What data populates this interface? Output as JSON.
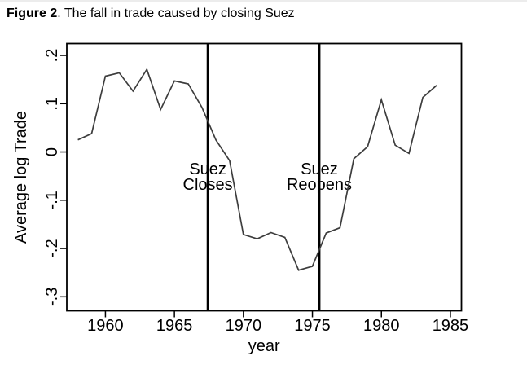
{
  "figure_title": {
    "prefix": "Figure 2",
    "rest": ". The fall in trade caused by closing Suez"
  },
  "chart_data": {
    "type": "line",
    "title": "Figure 2. The fall in trade caused by closing Suez",
    "xlabel": "year",
    "ylabel": "Average log Trade",
    "x": [
      1958,
      1959,
      1960,
      1961,
      1962,
      1963,
      1964,
      1965,
      1966,
      1967,
      1968,
      1969,
      1970,
      1971,
      1972,
      1973,
      1974,
      1975,
      1976,
      1977,
      1978,
      1979,
      1980,
      1981,
      1982,
      1983,
      1984
    ],
    "values": [
      0.025,
      0.038,
      0.157,
      0.164,
      0.126,
      0.171,
      0.088,
      0.147,
      0.141,
      0.092,
      0.025,
      -0.018,
      -0.171,
      -0.18,
      -0.167,
      -0.177,
      -0.245,
      -0.237,
      -0.168,
      -0.157,
      -0.014,
      0.011,
      0.108,
      0.014,
      -0.003,
      0.113,
      0.138
    ],
    "x_ticks": {
      "values": [
        1960,
        1965,
        1970,
        1975,
        1980,
        1985
      ],
      "labels": [
        "1960",
        "1965",
        "1970",
        "1975",
        "1980",
        "1985"
      ]
    },
    "y_ticks": {
      "values": [
        0.2,
        0.1,
        0,
        -0.1,
        -0.2,
        -0.3
      ],
      "labels": [
        ".2",
        ".1",
        "0",
        "-.1",
        "-.2",
        "-.3"
      ]
    },
    "xlim": [
      1957.2,
      1985.8
    ],
    "ylim": [
      -0.329,
      0.2245
    ],
    "grid": false,
    "legend": "none",
    "events": [
      {
        "x": 1967.42,
        "label_lines": [
          "Suez",
          "Closes"
        ]
      },
      {
        "x": 1975.5,
        "label_lines": [
          "Suez",
          "Reopens"
        ]
      }
    ],
    "colors": {
      "background": "#ffffff",
      "axis": "#000000",
      "text": "#000000",
      "series_line": "#3d3d3d",
      "event_line": "#000000"
    }
  }
}
